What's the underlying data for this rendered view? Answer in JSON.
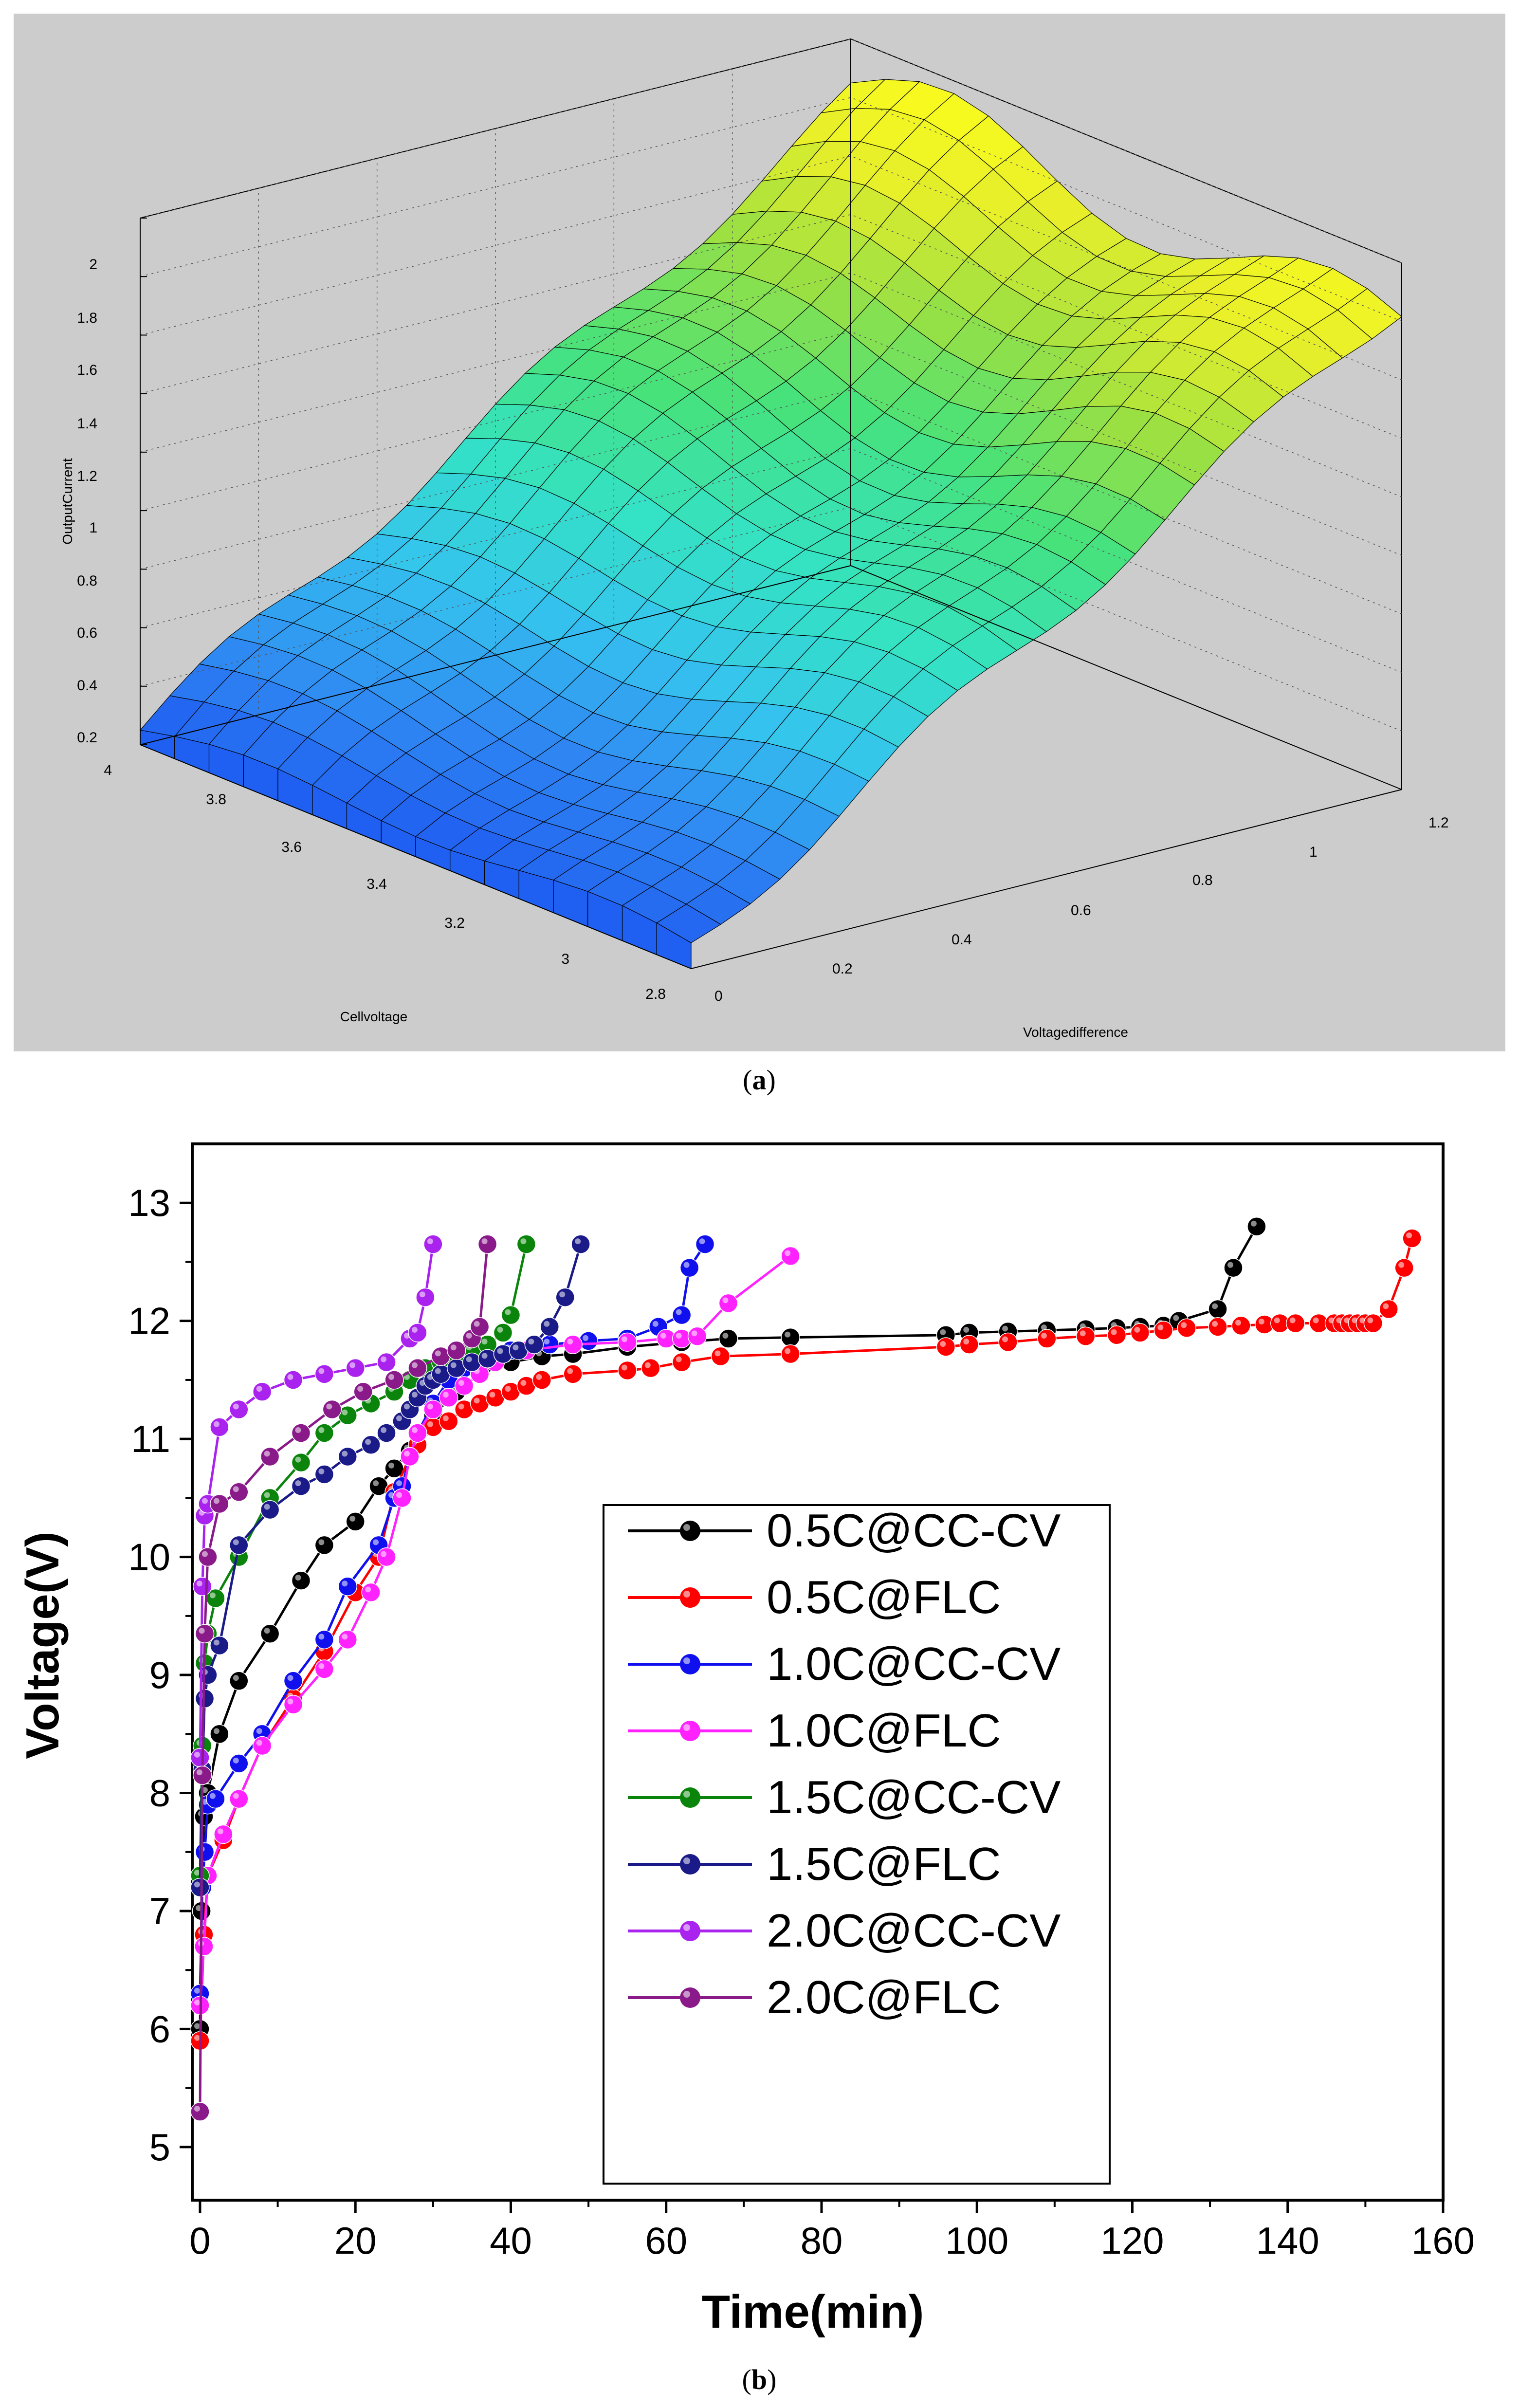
{
  "panel_a": {
    "caption": "(a)",
    "caption_letter": "a",
    "chart_data": {
      "type": "surface",
      "zlabel": "OutputCurrent",
      "xlabel": "Cellvoltage",
      "ylabel": "Voltagedifference",
      "z_ticks": [
        "2",
        "1.8",
        "1.6",
        "1.4",
        "1.2",
        "1",
        "0.8",
        "0.6",
        "0.4",
        "0.2"
      ],
      "x_ticks": [
        "4",
        "3.8",
        "3.6",
        "3.4",
        "3.2",
        "3",
        "2.8"
      ],
      "y_ticks": [
        "0",
        "0.2",
        "0.4",
        "0.6",
        "0.8",
        "1",
        "1.2"
      ],
      "xlim": [
        2.8,
        4.0
      ],
      "ylim": [
        0,
        1.2
      ],
      "zlim": [
        0.2,
        2.0
      ],
      "colormap": [
        "#1a4ff0",
        "#2f86f2",
        "#35c4ee",
        "#34e2c4",
        "#47e27a",
        "#9be043",
        "#e7ef2a",
        "#ffff1a"
      ],
      "background": "#cccccc"
    }
  },
  "panel_b": {
    "caption": "(b)",
    "caption_letter": "b",
    "chart_data": {
      "type": "line",
      "xlabel": "Time(min)",
      "ylabel": "Voltage(V)",
      "xlim": [
        -1,
        160
      ],
      "ylim": [
        4.55,
        13.5
      ],
      "x_ticks": [
        0,
        20,
        40,
        60,
        80,
        100,
        120,
        140,
        160
      ],
      "y_ticks": [
        5,
        6,
        7,
        8,
        9,
        10,
        11,
        12,
        13
      ],
      "legend_position": "center",
      "series": [
        {
          "name": "0.5C@CC-CV",
          "color": "#000000",
          "x": [
            0,
            0.2,
            0.5,
            1,
            2.5,
            5,
            9,
            13,
            16,
            20,
            23,
            25,
            27,
            30,
            33,
            36,
            40,
            44,
            48,
            55,
            62,
            68,
            76,
            96,
            99,
            104,
            109,
            114,
            118,
            121,
            124,
            126,
            131,
            133,
            136
          ],
          "y": [
            6.0,
            7.0,
            7.8,
            8.0,
            8.5,
            8.95,
            9.35,
            9.8,
            10.1,
            10.3,
            10.6,
            10.75,
            10.9,
            11.2,
            11.4,
            11.55,
            11.65,
            11.7,
            11.72,
            11.78,
            11.82,
            11.85,
            11.86,
            11.88,
            11.9,
            11.91,
            11.92,
            11.93,
            11.94,
            11.95,
            11.96,
            12.0,
            12.1,
            12.45,
            12.8
          ]
        },
        {
          "name": "0.5C@FLC",
          "color": "#ff0000",
          "x": [
            0,
            0.5,
            1,
            3,
            5,
            8,
            12,
            16,
            20,
            23,
            25,
            27,
            28,
            30,
            32,
            34,
            36,
            38,
            40,
            42,
            44,
            48,
            55,
            58,
            62,
            67,
            76,
            96,
            99,
            104,
            109,
            114,
            118,
            121,
            124,
            127,
            131,
            134,
            137,
            139,
            141,
            144,
            146,
            147,
            148,
            149,
            150,
            151,
            153,
            155,
            156
          ],
          "y": [
            5.9,
            6.8,
            7.3,
            7.6,
            7.95,
            8.4,
            8.8,
            9.2,
            9.7,
            10.0,
            10.55,
            10.85,
            10.95,
            11.1,
            11.15,
            11.25,
            11.3,
            11.35,
            11.4,
            11.45,
            11.5,
            11.55,
            11.58,
            11.6,
            11.65,
            11.7,
            11.72,
            11.78,
            11.8,
            11.82,
            11.85,
            11.87,
            11.88,
            11.9,
            11.92,
            11.94,
            11.95,
            11.96,
            11.97,
            11.98,
            11.98,
            11.98,
            11.98,
            11.98,
            11.98,
            11.98,
            11.98,
            11.98,
            12.1,
            12.45,
            12.7
          ]
        },
        {
          "name": "1.0C@CC-CV",
          "color": "#1010ee",
          "x": [
            0,
            0.3,
            0.6,
            1,
            2,
            5,
            8,
            12,
            16,
            19,
            23,
            25,
            26,
            27,
            28,
            30,
            32,
            34,
            36,
            40,
            45,
            50,
            55,
            59,
            62,
            63,
            65
          ],
          "y": [
            6.3,
            7.2,
            7.5,
            7.9,
            7.95,
            8.25,
            8.5,
            8.95,
            9.3,
            9.75,
            10.1,
            10.5,
            10.6,
            10.85,
            11.05,
            11.3,
            11.5,
            11.6,
            11.7,
            11.75,
            11.8,
            11.83,
            11.85,
            11.95,
            12.05,
            12.45,
            12.65
          ]
        },
        {
          "name": "1.0C@FLC",
          "color": "#ff22ff",
          "x": [
            0,
            0.5,
            1,
            3,
            5,
            8,
            12,
            16,
            19,
            22,
            24,
            26,
            27,
            28,
            30,
            32,
            34,
            36,
            38,
            42,
            48,
            55,
            60,
            62,
            64,
            68,
            76
          ],
          "y": [
            6.2,
            6.7,
            7.3,
            7.65,
            7.95,
            8.4,
            8.75,
            9.05,
            9.3,
            9.7,
            10.0,
            10.5,
            10.85,
            11.05,
            11.25,
            11.35,
            11.45,
            11.55,
            11.65,
            11.75,
            11.8,
            11.82,
            11.85,
            11.85,
            11.87,
            12.15,
            12.55
          ]
        },
        {
          "name": "1.5C@CC-CV",
          "color": "#0a840a",
          "x": [
            0,
            0.3,
            0.6,
            1,
            2,
            5,
            9,
            13,
            16,
            19,
            22,
            25,
            27,
            29,
            31,
            33,
            35,
            37,
            39,
            40,
            42
          ],
          "y": [
            7.3,
            8.4,
            9.1,
            9.35,
            9.65,
            10.0,
            10.5,
            10.8,
            11.05,
            11.2,
            11.3,
            11.4,
            11.5,
            11.6,
            11.65,
            11.7,
            11.75,
            11.8,
            11.9,
            12.05,
            12.65
          ]
        },
        {
          "name": "1.5C@FLC",
          "color": "#1a1a88",
          "x": [
            0,
            0.3,
            0.6,
            1,
            2.5,
            5,
            9,
            13,
            16,
            19,
            22,
            24,
            26,
            27,
            28,
            29,
            30,
            31,
            33,
            35,
            37,
            39,
            41,
            43,
            45,
            47,
            49
          ],
          "y": [
            7.2,
            8.2,
            8.8,
            9.0,
            9.25,
            10.1,
            10.4,
            10.6,
            10.7,
            10.85,
            10.95,
            11.05,
            11.15,
            11.25,
            11.35,
            11.45,
            11.5,
            11.55,
            11.6,
            11.65,
            11.68,
            11.72,
            11.75,
            11.8,
            11.95,
            12.2,
            12.65
          ]
        },
        {
          "name": "2.0C@CC-CV",
          "color": "#aa22ee",
          "x": [
            0,
            0.3,
            0.6,
            1,
            2.5,
            5,
            8,
            12,
            16,
            20,
            24,
            27,
            28,
            29,
            30
          ],
          "y": [
            8.3,
            9.75,
            10.35,
            10.45,
            11.1,
            11.25,
            11.4,
            11.5,
            11.55,
            11.6,
            11.65,
            11.85,
            11.9,
            12.2,
            12.65
          ]
        },
        {
          "name": "2.0C@FLC",
          "color": "#8a1a8a",
          "x": [
            0,
            0.3,
            0.6,
            1,
            2.5,
            5,
            9,
            13,
            17,
            21,
            25,
            28,
            31,
            33,
            35,
            36,
            37
          ],
          "y": [
            5.3,
            8.15,
            9.35,
            10.0,
            10.45,
            10.55,
            10.85,
            11.05,
            11.25,
            11.4,
            11.5,
            11.6,
            11.7,
            11.75,
            11.85,
            11.95,
            12.65
          ]
        }
      ]
    }
  }
}
